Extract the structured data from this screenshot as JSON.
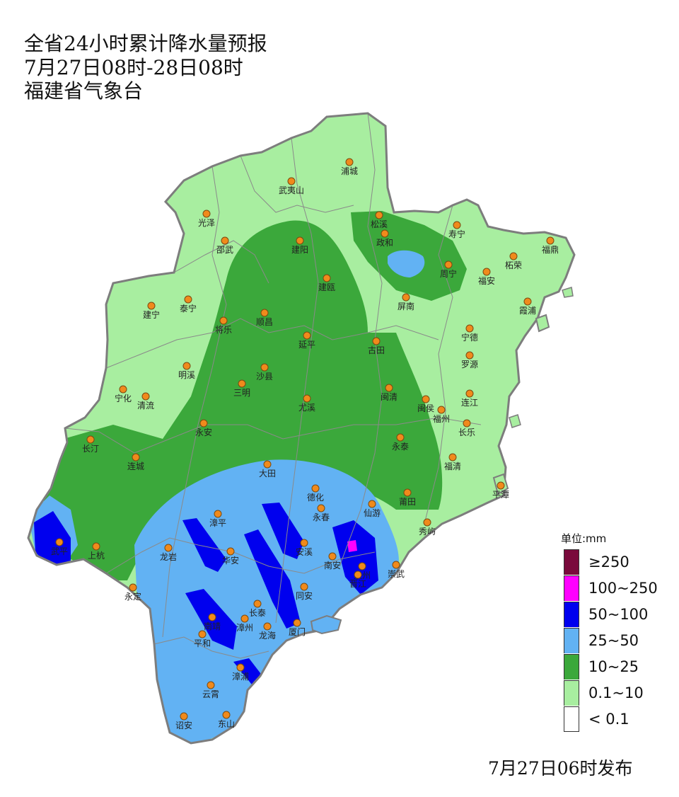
{
  "title": {
    "line1": "全省24小时累计降水量预报",
    "line2": "7月27日08时-28日08时",
    "line3": "福建省气象台"
  },
  "legend": {
    "unit": "单位:mm",
    "items": [
      {
        "label": "≥250",
        "color": "#7a0a3c"
      },
      {
        "label": "100~250",
        "color": "#ff00ff"
      },
      {
        "label": "50~100",
        "color": "#0000ee"
      },
      {
        "label": "25~50",
        "color": "#62b2f3"
      },
      {
        "label": "10~25",
        "color": "#3ba83b"
      },
      {
        "label": "0.1~10",
        "color": "#a8eea0"
      },
      {
        "label": "< 0.1",
        "color": "#ffffff"
      }
    ]
  },
  "issued": "7月27日06时发布",
  "cities": [
    {
      "name": "浦城"
    },
    {
      "name": "武夷山"
    },
    {
      "name": "光泽"
    },
    {
      "name": "松溪"
    },
    {
      "name": "政和"
    },
    {
      "name": "寿宁"
    },
    {
      "name": "福鼎"
    },
    {
      "name": "柘荣"
    },
    {
      "name": "邵武"
    },
    {
      "name": "建阳"
    },
    {
      "name": "周宁"
    },
    {
      "name": "福安"
    },
    {
      "name": "建瓯"
    },
    {
      "name": "建宁"
    },
    {
      "name": "泰宁"
    },
    {
      "name": "屏南"
    },
    {
      "name": "霞浦"
    },
    {
      "name": "顺昌"
    },
    {
      "name": "将乐"
    },
    {
      "name": "古田"
    },
    {
      "name": "宁德"
    },
    {
      "name": "延平"
    },
    {
      "name": "罗源"
    },
    {
      "name": "明溪"
    },
    {
      "name": "沙县"
    },
    {
      "name": "宁化"
    },
    {
      "name": "三明"
    },
    {
      "name": "清流"
    },
    {
      "name": "闽清"
    },
    {
      "name": "闽侯"
    },
    {
      "name": "连江"
    },
    {
      "name": "尤溪"
    },
    {
      "name": "福州"
    },
    {
      "name": "长乐"
    },
    {
      "name": "永安"
    },
    {
      "name": "长汀"
    },
    {
      "name": "永泰"
    },
    {
      "name": "连城"
    },
    {
      "name": "福清"
    },
    {
      "name": "大田"
    },
    {
      "name": "平潭"
    },
    {
      "name": "德化"
    },
    {
      "name": "莆田"
    },
    {
      "name": "仙游"
    },
    {
      "name": "永春"
    },
    {
      "name": "漳平"
    },
    {
      "name": "秀屿"
    },
    {
      "name": "武平"
    },
    {
      "name": "龙岩"
    },
    {
      "name": "上杭"
    },
    {
      "name": "华安"
    },
    {
      "name": "安溪"
    },
    {
      "name": "南安"
    },
    {
      "name": "泉州"
    },
    {
      "name": "崇武"
    },
    {
      "name": "晋江"
    },
    {
      "name": "同安"
    },
    {
      "name": "永定"
    },
    {
      "name": "长泰"
    },
    {
      "name": "漳州"
    },
    {
      "name": "南靖"
    },
    {
      "name": "龙海"
    },
    {
      "name": "厦门"
    },
    {
      "name": "平和"
    },
    {
      "name": "漳浦"
    },
    {
      "name": "云霄"
    },
    {
      "name": "诏安"
    },
    {
      "name": "东山"
    }
  ]
}
